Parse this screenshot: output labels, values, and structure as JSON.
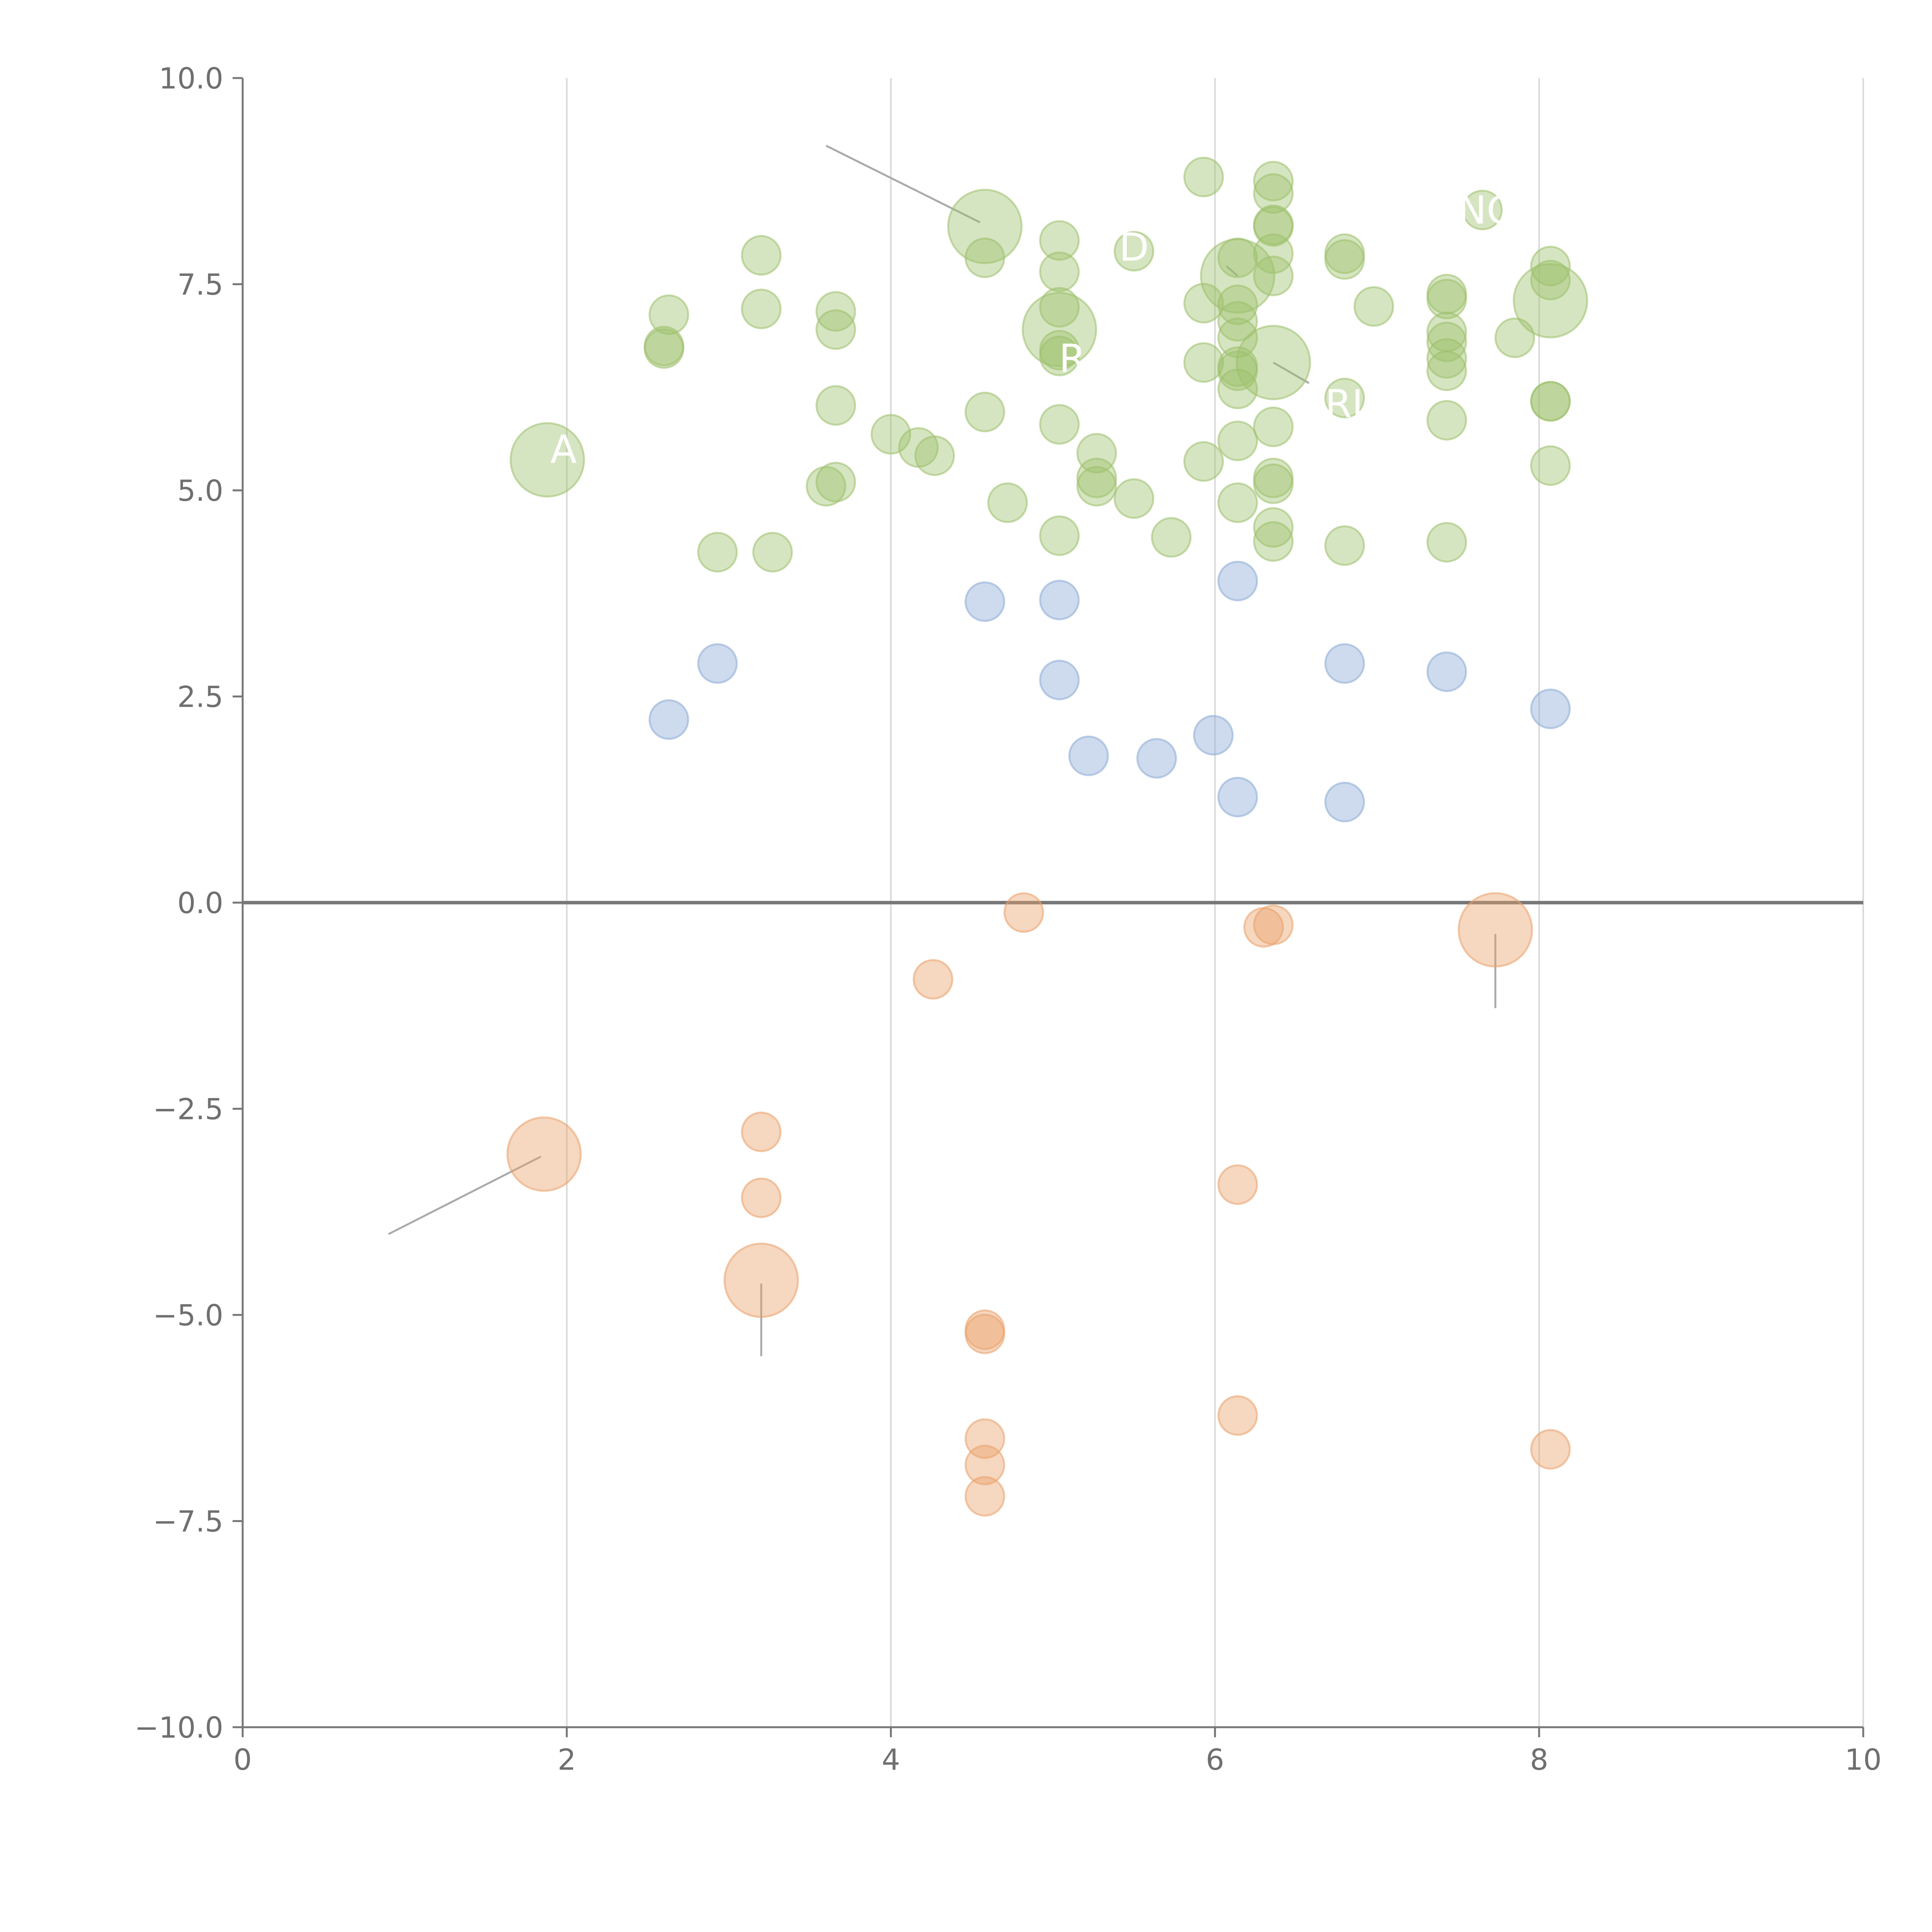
{
  "chart_data": {
    "type": "scatter",
    "title": "",
    "xlabel": "",
    "ylabel": "",
    "xlim": [
      0,
      10
    ],
    "ylim": [
      -10,
      10
    ],
    "x_ticks": [
      0,
      2,
      4,
      6,
      8,
      10
    ],
    "x_tick_labels": [
      "0",
      "2",
      "4",
      "6",
      "8",
      "10"
    ],
    "y_ticks": [
      10,
      7.5,
      5,
      2.5,
      0,
      -2.5,
      -5,
      -7.5,
      -10
    ],
    "y_tick_labels": [
      "10.0",
      "7.5",
      "5.0",
      "2.5",
      "0.0",
      "−2.5",
      "−5.0",
      "−7.5",
      "−10.0"
    ],
    "grid": "vertical",
    "zero_line": 0,
    "legend": "none",
    "series": [
      {
        "color": "#9dc06b",
        "points": [
          {
            "x": 4.58,
            "y": 8.2,
            "size": 3
          },
          {
            "x": 6.14,
            "y": 7.6,
            "size": 3
          },
          {
            "x": 5.04,
            "y": 6.95,
            "size": 3
          },
          {
            "x": 6.36,
            "y": 6.55,
            "size": 3
          },
          {
            "x": 8.07,
            "y": 7.3,
            "size": 3
          },
          {
            "x": 1.88,
            "y": 5.37,
            "size": 3
          },
          {
            "x": 5.93,
            "y": 8.8,
            "size": 1
          },
          {
            "x": 6.36,
            "y": 8.75,
            "size": 1
          },
          {
            "x": 6.36,
            "y": 8.6,
            "size": 1
          },
          {
            "x": 6.36,
            "y": 8.22,
            "size": 1
          },
          {
            "x": 6.36,
            "y": 8.2,
            "size": 1
          },
          {
            "x": 7.65,
            "y": 8.4,
            "size": 1
          },
          {
            "x": 3.2,
            "y": 7.85,
            "size": 1
          },
          {
            "x": 4.58,
            "y": 7.82,
            "size": 1
          },
          {
            "x": 5.04,
            "y": 8.03,
            "size": 1
          },
          {
            "x": 5.5,
            "y": 7.9,
            "size": 1
          },
          {
            "x": 6.14,
            "y": 7.82,
            "size": 1
          },
          {
            "x": 6.36,
            "y": 7.87,
            "size": 1
          },
          {
            "x": 6.8,
            "y": 7.87,
            "size": 1
          },
          {
            "x": 6.8,
            "y": 7.8,
            "size": 1
          },
          {
            "x": 8.07,
            "y": 7.72,
            "size": 1
          },
          {
            "x": 5.04,
            "y": 7.65,
            "size": 1
          },
          {
            "x": 6.36,
            "y": 7.6,
            "size": 1
          },
          {
            "x": 8.07,
            "y": 7.55,
            "size": 1
          },
          {
            "x": 2.63,
            "y": 7.13,
            "size": 1
          },
          {
            "x": 3.2,
            "y": 7.2,
            "size": 1
          },
          {
            "x": 3.66,
            "y": 7.17,
            "size": 1
          },
          {
            "x": 5.04,
            "y": 7.22,
            "size": 1
          },
          {
            "x": 5.93,
            "y": 7.27,
            "size": 1
          },
          {
            "x": 6.14,
            "y": 7.25,
            "size": 1
          },
          {
            "x": 6.14,
            "y": 7.05,
            "size": 1
          },
          {
            "x": 6.98,
            "y": 7.23,
            "size": 1
          },
          {
            "x": 7.43,
            "y": 7.38,
            "size": 1
          },
          {
            "x": 7.43,
            "y": 7.32,
            "size": 1
          },
          {
            "x": 2.6,
            "y": 6.75,
            "size": 1
          },
          {
            "x": 2.6,
            "y": 6.72,
            "size": 1
          },
          {
            "x": 3.66,
            "y": 6.95,
            "size": 1
          },
          {
            "x": 5.04,
            "y": 6.7,
            "size": 1
          },
          {
            "x": 5.04,
            "y": 6.63,
            "size": 1
          },
          {
            "x": 6.14,
            "y": 6.85,
            "size": 1
          },
          {
            "x": 6.14,
            "y": 6.5,
            "size": 1
          },
          {
            "x": 6.14,
            "y": 6.45,
            "size": 1
          },
          {
            "x": 7.43,
            "y": 6.92,
            "size": 1
          },
          {
            "x": 7.43,
            "y": 6.8,
            "size": 1
          },
          {
            "x": 7.43,
            "y": 6.6,
            "size": 1
          },
          {
            "x": 7.43,
            "y": 6.45,
            "size": 1
          },
          {
            "x": 7.85,
            "y": 6.85,
            "size": 1
          },
          {
            "x": 5.93,
            "y": 6.55,
            "size": 1
          },
          {
            "x": 3.66,
            "y": 6.03,
            "size": 1
          },
          {
            "x": 4.58,
            "y": 5.95,
            "size": 1
          },
          {
            "x": 6.14,
            "y": 6.23,
            "size": 1
          },
          {
            "x": 6.8,
            "y": 6.12,
            "size": 1
          },
          {
            "x": 8.07,
            "y": 6.08,
            "size": 1
          },
          {
            "x": 8.07,
            "y": 6.08,
            "size": 1
          },
          {
            "x": 4.0,
            "y": 5.68,
            "size": 1
          },
          {
            "x": 4.17,
            "y": 5.52,
            "size": 1
          },
          {
            "x": 4.27,
            "y": 5.42,
            "size": 1
          },
          {
            "x": 5.04,
            "y": 5.8,
            "size": 1
          },
          {
            "x": 5.27,
            "y": 5.45,
            "size": 1
          },
          {
            "x": 6.14,
            "y": 5.6,
            "size": 1
          },
          {
            "x": 6.36,
            "y": 5.77,
            "size": 1
          },
          {
            "x": 7.43,
            "y": 5.85,
            "size": 1
          },
          {
            "x": 5.93,
            "y": 5.35,
            "size": 1
          },
          {
            "x": 8.07,
            "y": 5.3,
            "size": 1
          },
          {
            "x": 3.6,
            "y": 5.05,
            "size": 1
          },
          {
            "x": 3.66,
            "y": 5.1,
            "size": 1
          },
          {
            "x": 5.27,
            "y": 5.15,
            "size": 1
          },
          {
            "x": 5.27,
            "y": 5.05,
            "size": 1
          },
          {
            "x": 6.36,
            "y": 5.15,
            "size": 1
          },
          {
            "x": 6.36,
            "y": 5.08,
            "size": 1
          },
          {
            "x": 4.72,
            "y": 4.85,
            "size": 1
          },
          {
            "x": 5.5,
            "y": 4.9,
            "size": 1
          },
          {
            "x": 6.14,
            "y": 4.85,
            "size": 1
          },
          {
            "x": 6.36,
            "y": 4.55,
            "size": 1
          },
          {
            "x": 2.93,
            "y": 4.25,
            "size": 1
          },
          {
            "x": 3.27,
            "y": 4.25,
            "size": 1
          },
          {
            "x": 5.04,
            "y": 4.45,
            "size": 1
          },
          {
            "x": 5.73,
            "y": 4.43,
            "size": 1
          },
          {
            "x": 6.36,
            "y": 4.38,
            "size": 1
          },
          {
            "x": 6.8,
            "y": 4.33,
            "size": 1
          },
          {
            "x": 7.43,
            "y": 4.37,
            "size": 1
          }
        ]
      },
      {
        "color": "#8aaad6",
        "points": [
          {
            "x": 6.14,
            "y": 3.9,
            "size": 1
          },
          {
            "x": 4.58,
            "y": 3.65,
            "size": 1
          },
          {
            "x": 5.04,
            "y": 3.67,
            "size": 1
          },
          {
            "x": 2.93,
            "y": 2.9,
            "size": 1
          },
          {
            "x": 6.8,
            "y": 2.9,
            "size": 1
          },
          {
            "x": 7.43,
            "y": 2.8,
            "size": 1
          },
          {
            "x": 5.04,
            "y": 2.7,
            "size": 1
          },
          {
            "x": 8.07,
            "y": 2.35,
            "size": 1
          },
          {
            "x": 2.63,
            "y": 2.22,
            "size": 1
          },
          {
            "x": 5.99,
            "y": 2.03,
            "size": 1
          },
          {
            "x": 5.22,
            "y": 1.78,
            "size": 1
          },
          {
            "x": 5.64,
            "y": 1.75,
            "size": 1
          },
          {
            "x": 6.14,
            "y": 1.28,
            "size": 1
          },
          {
            "x": 6.8,
            "y": 1.22,
            "size": 1
          }
        ]
      },
      {
        "color": "#eaa06a",
        "points": [
          {
            "x": 7.73,
            "y": -0.33,
            "size": 3
          },
          {
            "x": 1.86,
            "y": -3.05,
            "size": 3
          },
          {
            "x": 3.2,
            "y": -4.58,
            "size": 3
          },
          {
            "x": 4.82,
            "y": -0.12,
            "size": 1
          },
          {
            "x": 6.3,
            "y": -0.3,
            "size": 1
          },
          {
            "x": 6.36,
            "y": -0.27,
            "size": 1
          },
          {
            "x": 4.26,
            "y": -0.93,
            "size": 1
          },
          {
            "x": 3.2,
            "y": -2.78,
            "size": 1
          },
          {
            "x": 3.2,
            "y": -3.58,
            "size": 1
          },
          {
            "x": 6.14,
            "y": -3.42,
            "size": 1
          },
          {
            "x": 4.58,
            "y": -5.18,
            "size": 1
          },
          {
            "x": 4.58,
            "y": -5.23,
            "size": 1
          },
          {
            "x": 6.14,
            "y": -6.22,
            "size": 1
          },
          {
            "x": 4.58,
            "y": -6.5,
            "size": 1
          },
          {
            "x": 4.58,
            "y": -6.82,
            "size": 1
          },
          {
            "x": 8.07,
            "y": -6.63,
            "size": 1
          },
          {
            "x": 4.58,
            "y": -7.2,
            "size": 1
          }
        ]
      }
    ],
    "annotations": [
      {
        "text": "D",
        "x": 5.5,
        "y": 7.95
      },
      {
        "text": "R",
        "x": 5.12,
        "y": 6.6
      },
      {
        "text": "RIC",
        "x": 6.88,
        "y": 6.05
      },
      {
        "text": "NC",
        "x": 7.67,
        "y": 8.4
      },
      {
        "text": "A",
        "x": 1.98,
        "y": 5.5
      }
    ],
    "leader_lines": [
      {
        "x1": 3.6,
        "y1": 9.18,
        "x2": 4.55,
        "y2": 8.25
      },
      {
        "x1": 6.36,
        "y1": 6.55,
        "x2": 6.58,
        "y2": 6.3
      },
      {
        "x1": 6.07,
        "y1": 7.72,
        "x2": 6.14,
        "y2": 7.6
      },
      {
        "x1": 1.84,
        "y1": -3.08,
        "x2": 0.9,
        "y2": -4.02
      },
      {
        "x1": 3.2,
        "y1": -4.62,
        "x2": 3.2,
        "y2": -5.5
      },
      {
        "x1": 7.73,
        "y1": -0.38,
        "x2": 7.73,
        "y2": -1.28
      }
    ]
  }
}
